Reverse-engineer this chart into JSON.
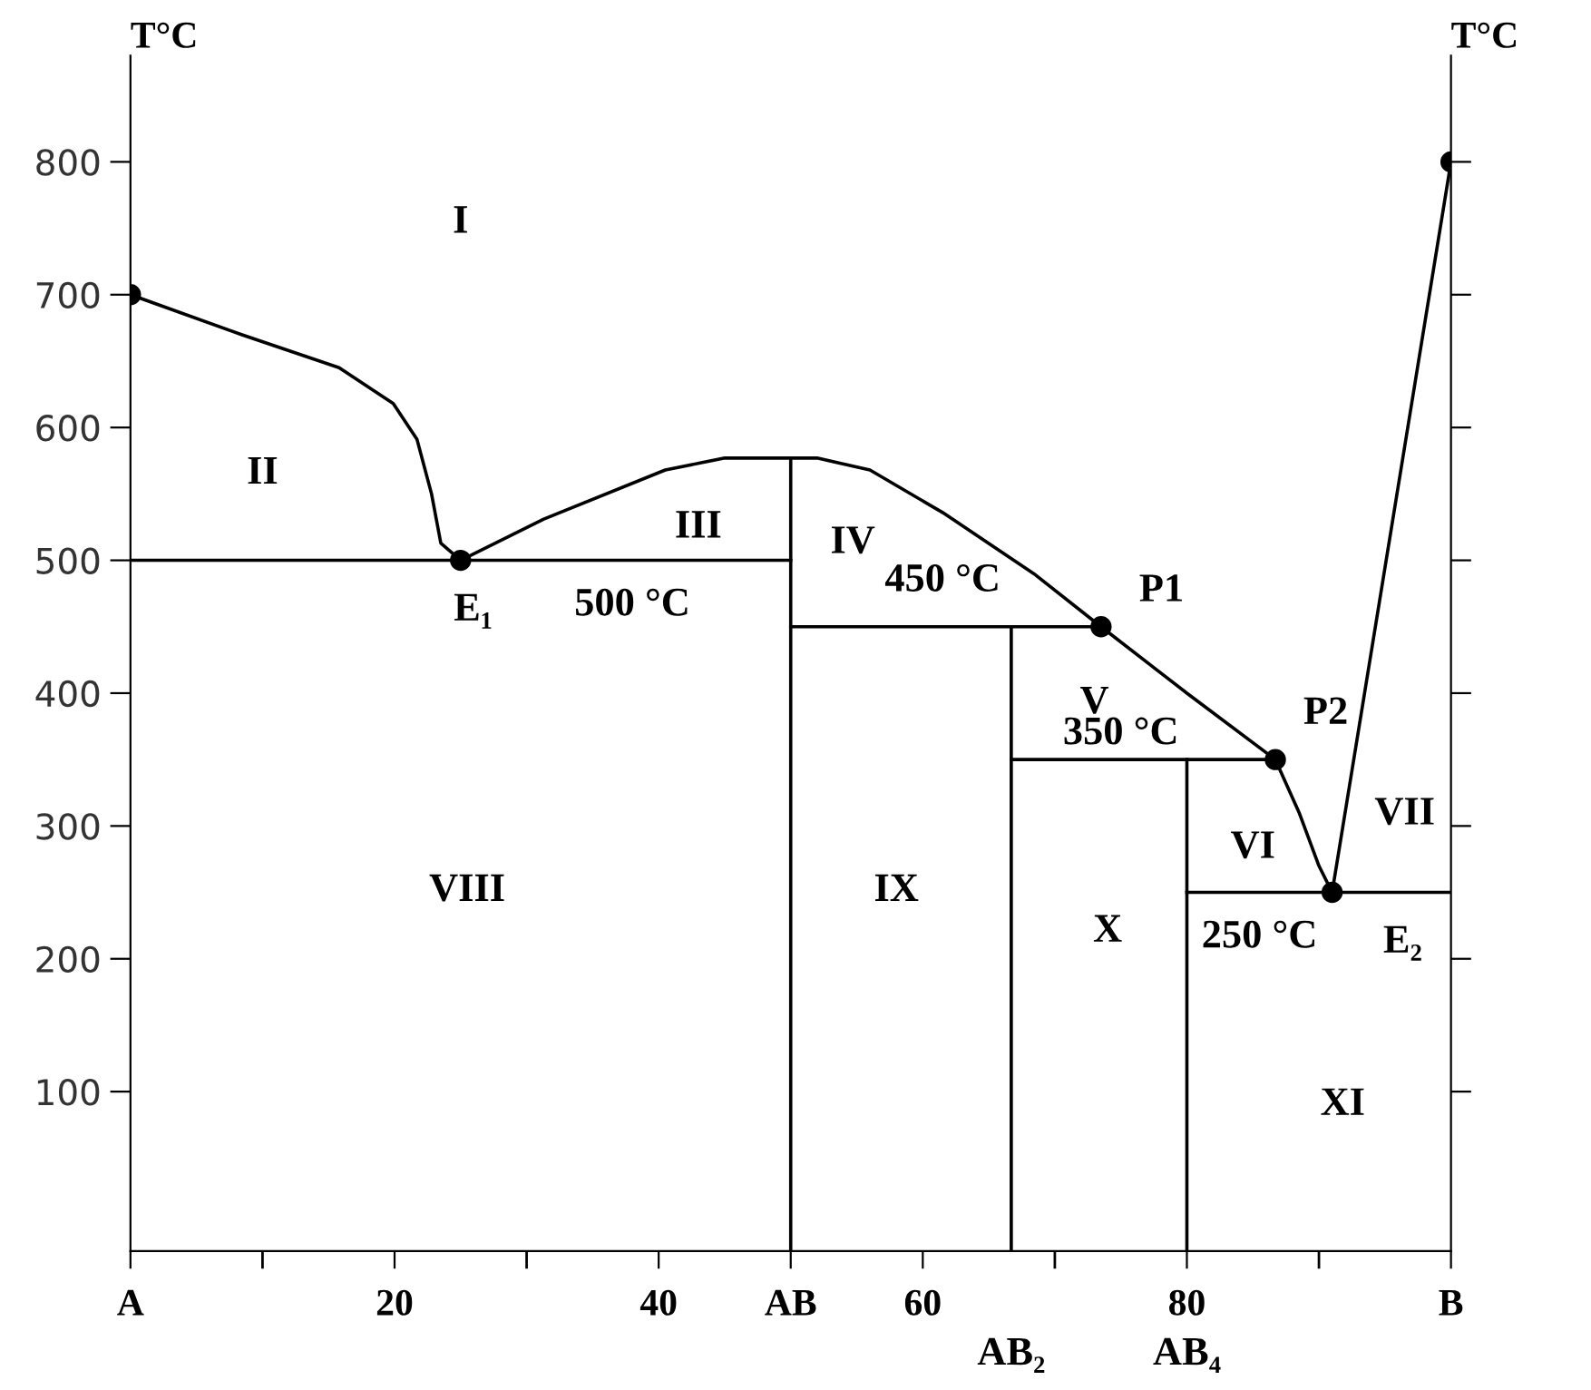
{
  "chart_data": {
    "type": "line",
    "ylabel": "T°C",
    "y2label": "T°C",
    "xlim": [
      0,
      100
    ],
    "ylim": [
      -20,
      880
    ],
    "xticks": [
      {
        "value": 0,
        "label": "A"
      },
      {
        "value": 10,
        "label": null
      },
      20,
      {
        "value": 30,
        "label": null
      },
      40,
      {
        "value": 50,
        "label": "AB"
      },
      60,
      {
        "value": 70,
        "label": null
      },
      80,
      {
        "value": 90,
        "label": null
      },
      {
        "value": 100,
        "label": "B"
      }
    ],
    "yticks": [
      100,
      200,
      300,
      400,
      500,
      600,
      700,
      800
    ],
    "grid": false,
    "legend": false,
    "series": [
      {
        "color": "#000000",
        "x": [
          0,
          8.4,
          15.8,
          19.9,
          21.7,
          22.8,
          23.5,
          25
        ],
        "values": [
          700,
          670,
          645,
          618,
          591,
          550,
          513,
          500
        ]
      },
      {
        "color": "#000000",
        "x": [
          25,
          31.3,
          40.5,
          45,
          52,
          56,
          61.5,
          68.4,
          73.5,
          80,
          86.7,
          88.5,
          90,
          91
        ],
        "values": [
          500,
          531,
          568,
          577,
          577,
          568,
          536,
          490,
          450,
          400,
          350,
          310,
          270,
          250
        ]
      },
      {
        "color": "#000000",
        "x": [
          91,
          100
        ],
        "values": [
          250,
          800
        ]
      },
      {
        "color": "#000000",
        "x": [
          0,
          50
        ],
        "values": [
          500,
          500
        ]
      },
      {
        "color": "#000000",
        "x": [
          50,
          73.5
        ],
        "values": [
          450,
          450
        ]
      },
      {
        "color": "#000000",
        "x": [
          66.7,
          86.7
        ],
        "values": [
          350,
          350
        ]
      },
      {
        "color": "#000000",
        "x": [
          80,
          100
        ],
        "values": [
          250,
          250
        ]
      },
      {
        "color": "#000000",
        "x": [
          50,
          50
        ],
        "values": [
          -20,
          575
        ]
      },
      {
        "color": "#000000",
        "x": [
          66.7,
          66.7
        ],
        "values": [
          -20,
          450
        ]
      },
      {
        "color": "#000000",
        "x": [
          80,
          80
        ],
        "values": [
          -20,
          350
        ]
      },
      {
        "type": "scatter",
        "color": "#000000",
        "marker": "circle",
        "x": [
          0,
          25,
          73.5,
          86.7,
          91,
          100
        ],
        "values": [
          700,
          500,
          450,
          350,
          250,
          800
        ]
      }
    ],
    "annotations": [
      "I",
      "II",
      "III",
      "IV",
      "V",
      "VI",
      "VII",
      "VIII",
      "IX",
      "X",
      "XI",
      {
        "text": "500 °C",
        "x": 38,
        "y": 500
      },
      {
        "text": "450 °C",
        "x": 61.5,
        "y": 450
      },
      {
        "text": "350 °C",
        "x": 75,
        "y": 350
      },
      {
        "text": "250 °C",
        "x": 85.5,
        "y": 250
      },
      {
        "text": "E₁",
        "x": 25,
        "y": 500
      },
      {
        "text": "E₂",
        "x": 91,
        "y": 250
      },
      {
        "text": "P1",
        "x": 73.5,
        "y": 450
      },
      {
        "text": "P2",
        "x": 86.7,
        "y": 350
      },
      {
        "text": "AB₂",
        "x": 66.7,
        "y": -20
      },
      {
        "text": "AB₄",
        "x": 80,
        "y": -20
      }
    ]
  }
}
